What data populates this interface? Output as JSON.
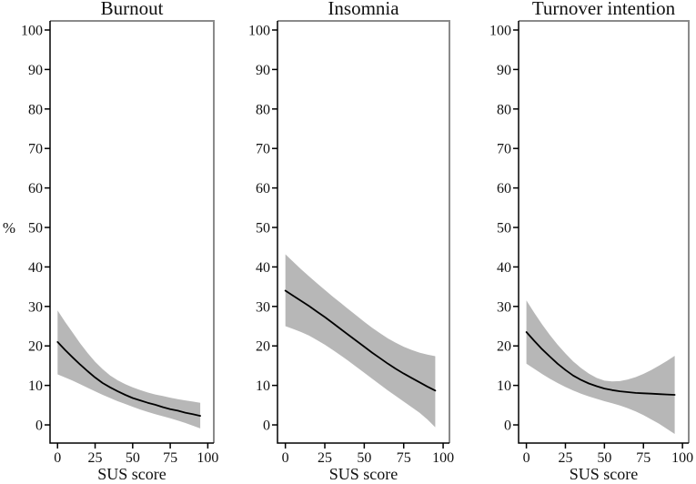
{
  "figure": {
    "y_axis_label": "%",
    "background_color": "#ffffff",
    "band_color": "#b7b7b7",
    "line_color": "#000000",
    "axis_color": "#000000",
    "frame_color": "#8a8a8a",
    "text_color": "#111111"
  },
  "chart_data": [
    {
      "type": "line",
      "title": "Burnout",
      "xlabel": "SUS score",
      "ylabel": "%",
      "xlim": [
        -5,
        104
      ],
      "ylim": [
        -4.6,
        102.3
      ],
      "xticks": [
        0,
        25,
        50,
        75,
        100
      ],
      "yticks": [
        0,
        10,
        20,
        30,
        40,
        50,
        60,
        70,
        80,
        90,
        100
      ],
      "grid": false,
      "legend": "none",
      "band": "95% confidence interval",
      "x": [
        0,
        5,
        10,
        15,
        20,
        25,
        30,
        35,
        40,
        45,
        50,
        55,
        60,
        65,
        70,
        75,
        80,
        85,
        90,
        95
      ],
      "mean": [
        21.0,
        19.0,
        17.1,
        15.3,
        13.6,
        12.0,
        10.6,
        9.5,
        8.5,
        7.6,
        6.8,
        6.2,
        5.6,
        5.1,
        4.5,
        4.0,
        3.6,
        3.1,
        2.7,
        2.3
      ],
      "ci_upper": [
        29.0,
        26.1,
        23.4,
        20.7,
        18.2,
        16.0,
        14.1,
        12.5,
        11.3,
        10.3,
        9.5,
        8.8,
        8.2,
        7.7,
        7.3,
        6.9,
        6.5,
        6.2,
        5.9,
        5.6
      ],
      "ci_lower": [
        12.8,
        12.0,
        11.2,
        10.3,
        9.4,
        8.5,
        7.6,
        6.8,
        6.0,
        5.3,
        4.6,
        3.9,
        3.3,
        2.7,
        2.2,
        1.7,
        1.1,
        0.5,
        -0.2,
        -0.9
      ]
    },
    {
      "type": "line",
      "title": "Insomnia",
      "xlabel": "SUS score",
      "ylabel": "%",
      "xlim": [
        -5,
        104
      ],
      "ylim": [
        -4.6,
        102.3
      ],
      "xticks": [
        0,
        25,
        50,
        75,
        100
      ],
      "yticks": [
        0,
        10,
        20,
        30,
        40,
        50,
        60,
        70,
        80,
        90,
        100
      ],
      "grid": false,
      "legend": "none",
      "band": "95% confidence interval",
      "x": [
        0,
        5,
        10,
        15,
        20,
        25,
        30,
        35,
        40,
        45,
        50,
        55,
        60,
        65,
        70,
        75,
        80,
        85,
        90,
        95
      ],
      "mean": [
        34.0,
        32.7,
        31.4,
        30.1,
        28.7,
        27.3,
        25.8,
        24.3,
        22.8,
        21.3,
        19.8,
        18.3,
        16.9,
        15.5,
        14.2,
        13.0,
        11.9,
        10.8,
        9.7,
        8.7
      ],
      "ci_upper": [
        43.2,
        41.3,
        39.4,
        37.6,
        35.9,
        34.2,
        32.5,
        30.9,
        29.3,
        27.7,
        26.1,
        24.6,
        23.2,
        21.9,
        20.8,
        19.8,
        19.0,
        18.3,
        17.8,
        17.4
      ],
      "ci_lower": [
        25.0,
        24.3,
        23.5,
        22.6,
        21.5,
        20.3,
        19.0,
        17.6,
        16.2,
        14.7,
        13.2,
        11.7,
        10.2,
        8.7,
        7.3,
        5.9,
        4.5,
        3.1,
        1.4,
        -0.6
      ]
    },
    {
      "type": "line",
      "title": "Turnover intention",
      "xlabel": "SUS score",
      "ylabel": "%",
      "xlim": [
        -5,
        104
      ],
      "ylim": [
        -4.6,
        102.3
      ],
      "xticks": [
        0,
        25,
        50,
        75,
        100
      ],
      "yticks": [
        0,
        10,
        20,
        30,
        40,
        50,
        60,
        70,
        80,
        90,
        100
      ],
      "grid": false,
      "legend": "none",
      "band": "95% confidence interval",
      "x": [
        0,
        5,
        10,
        15,
        20,
        25,
        30,
        35,
        40,
        45,
        50,
        55,
        60,
        65,
        70,
        75,
        80,
        85,
        90,
        95
      ],
      "mean": [
        23.5,
        21.3,
        19.2,
        17.3,
        15.5,
        13.9,
        12.5,
        11.4,
        10.5,
        9.8,
        9.2,
        8.8,
        8.5,
        8.3,
        8.1,
        8.0,
        7.9,
        7.8,
        7.7,
        7.6
      ],
      "ci_upper": [
        31.5,
        28.4,
        25.5,
        22.8,
        20.3,
        18.1,
        16.1,
        14.4,
        13.0,
        11.9,
        11.2,
        11.0,
        11.1,
        11.5,
        12.1,
        12.9,
        13.9,
        15.0,
        16.2,
        17.5
      ],
      "ci_lower": [
        15.5,
        14.2,
        12.9,
        11.7,
        10.6,
        9.6,
        8.7,
        7.9,
        7.2,
        6.6,
        6.0,
        5.5,
        4.9,
        4.2,
        3.4,
        2.5,
        1.4,
        0.3,
        -1.0,
        -2.3
      ]
    }
  ]
}
